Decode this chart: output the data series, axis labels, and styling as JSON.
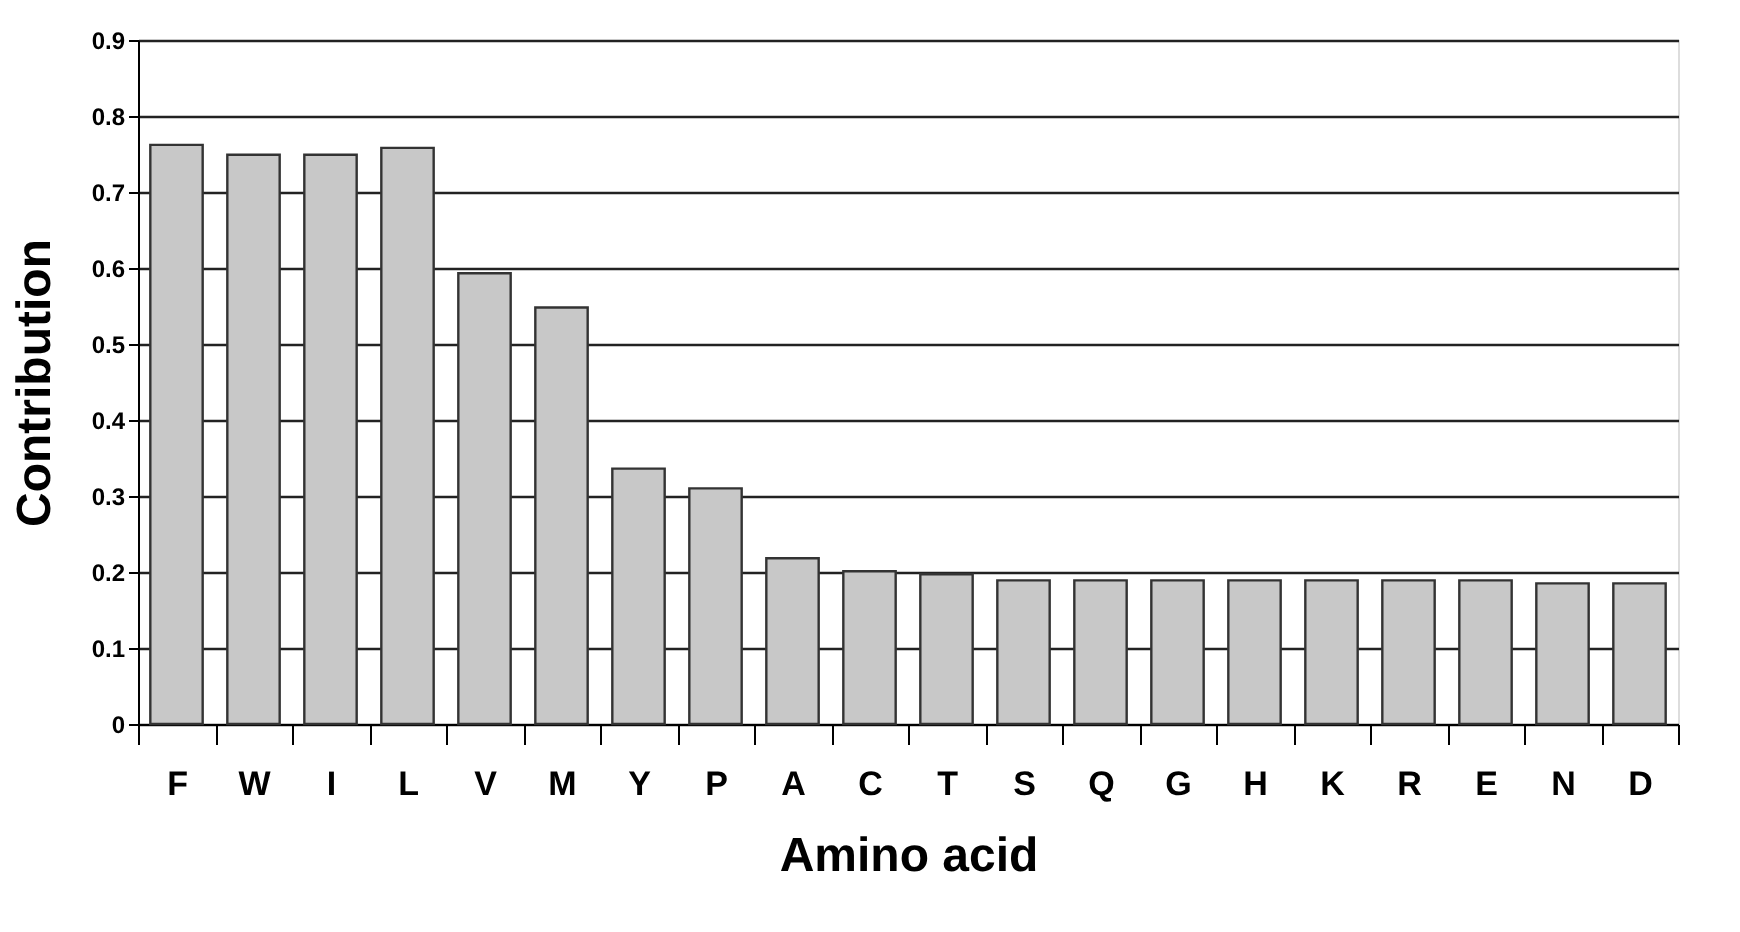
{
  "chart_data": {
    "type": "bar",
    "xlabel": "Amino acid",
    "ylabel": "Contribution",
    "categories": [
      "F",
      "W",
      "I",
      "L",
      "V",
      "M",
      "Y",
      "P",
      "A",
      "C",
      "T",
      "S",
      "Q",
      "G",
      "H",
      "K",
      "R",
      "E",
      "N",
      "D"
    ],
    "values": [
      0.762,
      0.749,
      0.749,
      0.758,
      0.593,
      0.548,
      0.336,
      0.31,
      0.218,
      0.201,
      0.197,
      0.189,
      0.189,
      0.189,
      0.189,
      0.189,
      0.189,
      0.189,
      0.185,
      0.185
    ],
    "color": "#c8c8c8",
    "ylim": [
      0,
      0.9
    ],
    "yticks": [
      0,
      0.1,
      0.2,
      0.3,
      0.4,
      0.5,
      0.6,
      0.7,
      0.8,
      0.9
    ],
    "grid": "y"
  }
}
